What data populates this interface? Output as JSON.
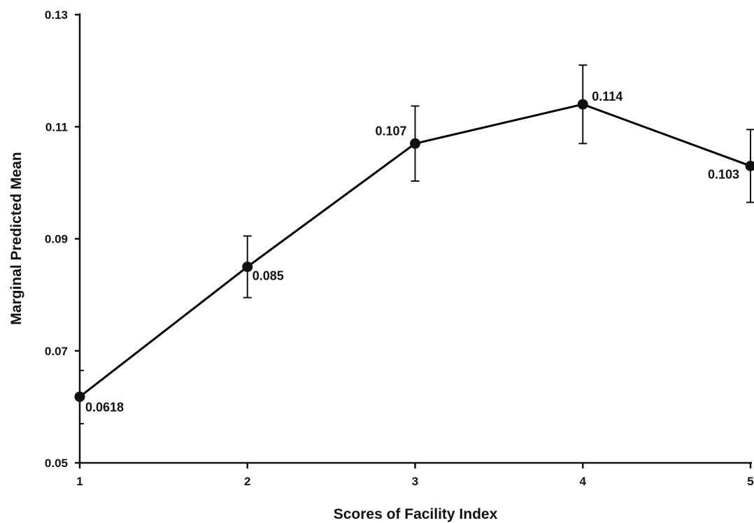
{
  "chart_data": {
    "type": "line",
    "title": "",
    "xlabel": "Scores of Facility Index",
    "ylabel": "Marginal Predicted Mean",
    "x": [
      1,
      2,
      3,
      4,
      5
    ],
    "x_tick_labels": [
      "1",
      "2",
      "3",
      "4",
      "5"
    ],
    "y_tick_labels": [
      "0.05",
      "0.07",
      "0.09",
      "0.11",
      "0.13"
    ],
    "y_ticks": [
      0.05,
      0.07,
      0.09,
      0.11,
      0.13
    ],
    "xlim": [
      1,
      5
    ],
    "ylim": [
      0.05,
      0.13
    ],
    "grid": false,
    "series": [
      {
        "values": [
          0.0618,
          0.085,
          0.107,
          0.114,
          0.103
        ],
        "error_lower": [
          0.057,
          0.0795,
          0.1003,
          0.107,
          0.0965
        ],
        "error_upper": [
          0.0665,
          0.0905,
          0.1137,
          0.121,
          0.1095
        ],
        "data_labels": [
          "0.0618",
          "0.085",
          "0.107",
          "0.114",
          "0.103"
        ],
        "color": "#000000"
      }
    ]
  }
}
